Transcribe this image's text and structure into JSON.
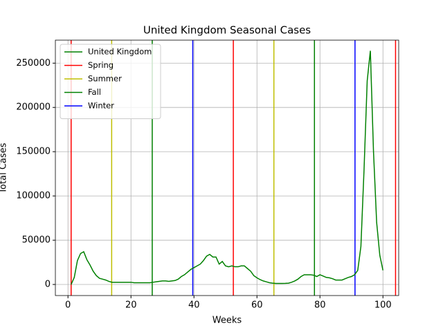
{
  "chart_data": {
    "type": "line",
    "title": "United Kingdom Seasonal Cases",
    "xlabel": "Weeks",
    "ylabel": "Total Cases",
    "series": [
      {
        "name": "United Kingdom",
        "color": "#008000",
        "x": [
          1,
          2,
          3,
          4,
          5,
          6,
          7,
          8,
          9,
          10,
          11,
          12,
          13,
          14,
          15,
          16,
          17,
          18,
          19,
          20,
          21,
          22,
          23,
          24,
          25,
          26,
          27,
          28,
          29,
          30,
          31,
          32,
          33,
          34,
          35,
          36,
          37,
          38,
          39,
          40,
          41,
          42,
          43,
          44,
          45,
          46,
          47,
          48,
          49,
          50,
          51,
          52,
          53,
          54,
          55,
          56,
          57,
          58,
          59,
          60,
          61,
          62,
          63,
          64,
          65,
          66,
          67,
          68,
          69,
          70,
          71,
          72,
          73,
          74,
          75,
          76,
          77,
          78,
          79,
          80,
          81,
          82,
          83,
          84,
          85,
          86,
          87,
          88,
          89,
          90,
          91,
          92,
          93,
          94,
          95,
          96,
          97,
          98,
          99,
          100
        ],
        "values": [
          0,
          8000,
          27000,
          35000,
          37000,
          28000,
          22000,
          15000,
          10000,
          7000,
          6000,
          5000,
          3500,
          2500,
          2500,
          2500,
          2500,
          2500,
          2500,
          2500,
          2000,
          2000,
          2000,
          2000,
          2000,
          2000,
          2500,
          3000,
          3500,
          4000,
          4000,
          3500,
          4000,
          4500,
          6000,
          9000,
          11000,
          14000,
          17000,
          19000,
          21000,
          23000,
          27000,
          32000,
          34000,
          31000,
          31000,
          23000,
          26000,
          21000,
          20000,
          21000,
          20000,
          20000,
          21000,
          21000,
          18000,
          15000,
          10000,
          7500,
          5500,
          4000,
          3000,
          2000,
          1500,
          1200,
          1200,
          1200,
          1300,
          1500,
          2500,
          4000,
          6000,
          9000,
          11000,
          11000,
          11000,
          10500,
          9000,
          11000,
          9500,
          8000,
          7500,
          6500,
          5000,
          5000,
          5000,
          6500,
          8000,
          9000,
          11000,
          16000,
          43000,
          130000,
          230000,
          264000,
          150000,
          70000,
          33000,
          16000
        ]
      }
    ],
    "vlines": [
      {
        "name": "Spring",
        "color": "#ff0000",
        "x": [
          1,
          52.5,
          104
        ]
      },
      {
        "name": "Summer",
        "color": "#bfbf00",
        "x": [
          13.875,
          65.375
        ]
      },
      {
        "name": "Fall",
        "color": "#008000",
        "x": [
          26.75,
          78.25
        ]
      },
      {
        "name": "Winter",
        "color": "#0000ff",
        "x": [
          39.625,
          91.125
        ]
      }
    ],
    "xlim": [
      -4,
      105
    ],
    "ylim": [
      -12500,
      276000
    ],
    "xticks": [
      0,
      20,
      40,
      60,
      80,
      100
    ],
    "yticks": [
      0,
      50000,
      100000,
      150000,
      200000,
      250000
    ],
    "grid": true,
    "legend": "upper-left"
  }
}
